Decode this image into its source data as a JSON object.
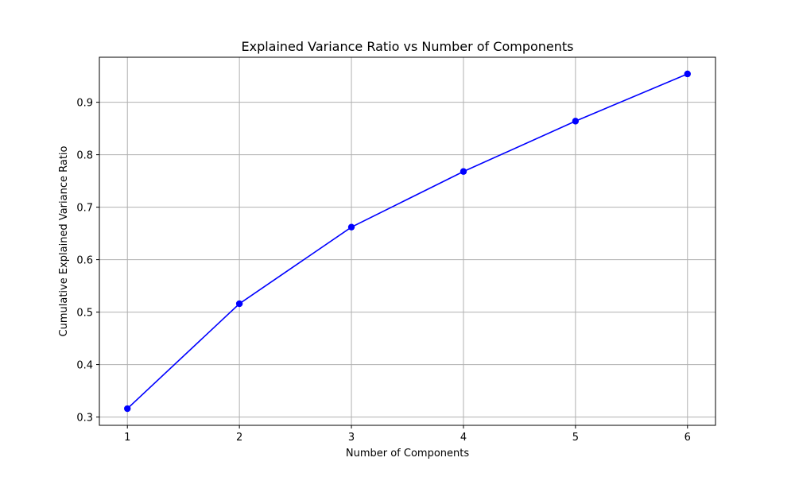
{
  "chart_data": {
    "type": "line",
    "title": "Explained Variance Ratio vs Number of Components",
    "xlabel": "Number of Components",
    "ylabel": "Cumulative Explained Variance Ratio",
    "x": [
      1,
      2,
      3,
      4,
      5,
      6
    ],
    "series": [
      {
        "values": [
          0.316,
          0.516,
          0.662,
          0.768,
          0.864,
          0.954
        ],
        "color": "#0000ff",
        "marker": "circle"
      }
    ],
    "xticks": [
      1,
      2,
      3,
      4,
      5,
      6
    ],
    "xtick_labels": [
      "1",
      "2",
      "3",
      "4",
      "5",
      "6"
    ],
    "yticks": [
      0.3,
      0.4,
      0.5,
      0.6,
      0.7,
      0.8,
      0.9
    ],
    "ytick_labels": [
      "0.3",
      "0.4",
      "0.5",
      "0.6",
      "0.7",
      "0.8",
      "0.9"
    ],
    "xlim": [
      0.75,
      6.25
    ],
    "ylim": [
      0.2842,
      0.9858
    ],
    "grid": true
  }
}
